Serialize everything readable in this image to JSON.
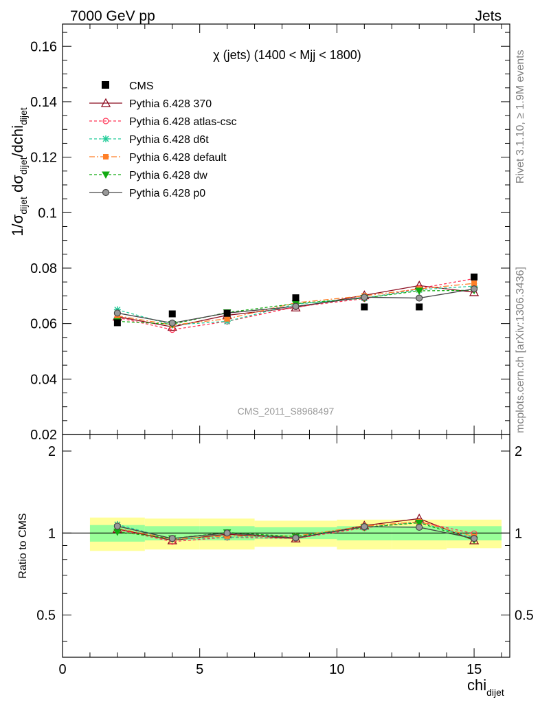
{
  "header": {
    "left": "7000 GeV pp",
    "right": "Jets"
  },
  "side_labels": {
    "rivet": "Rivet 3.1.10, ≥ 1.9M events",
    "mcplots": "mcplots.cern.ch [arXiv:1306.3436]"
  },
  "chart_data": [
    {
      "type": "line",
      "title": "χ (jets) (1400 < Mjj < 1800)",
      "ylabel_main": "1/σ",
      "ylabel_sub1": "dijet",
      "ylabel_mid": " dσ",
      "ylabel_sub2": "dijet",
      "ylabel_end": "/dchi",
      "ylabel_sub3": "dijet",
      "analysis_label": "CMS_2011_S8968497",
      "xlim": [
        0,
        16.3
      ],
      "ylim": [
        0.02,
        0.168
      ],
      "y_ticks": [
        "0.02",
        "0.04",
        "0.06",
        "0.08",
        "0.1",
        "0.12",
        "0.14",
        "0.16"
      ],
      "y_tick_values": [
        0.02,
        0.04,
        0.06,
        0.08,
        0.1,
        0.12,
        0.14,
        0.16
      ],
      "grid": false,
      "legend_position": "top-left",
      "data": {
        "name": "CMS",
        "x": [
          2,
          4,
          6,
          8.5,
          11,
          13,
          15
        ],
        "y": [
          0.0603,
          0.0635,
          0.0637,
          0.0693,
          0.066,
          0.066,
          0.0768
        ]
      },
      "series": [
        {
          "name": "Pythia 6.428 370",
          "color": "#8b0a1e",
          "dash": "",
          "marker": "triangle",
          "x": [
            2,
            4,
            6,
            8.5,
            11,
            13,
            15
          ],
          "y": [
            0.0625,
            0.0588,
            0.063,
            0.0658,
            0.0702,
            0.0737,
            0.0713
          ]
        },
        {
          "name": "Pythia 6.428 atlas-csc",
          "color": "#ff3355",
          "dash": "4,3",
          "marker": "circle-open",
          "x": [
            2,
            4,
            6,
            8.5,
            11,
            13,
            15
          ],
          "y": [
            0.0622,
            0.0578,
            0.0608,
            0.066,
            0.069,
            0.0727,
            0.0762
          ]
        },
        {
          "name": "Pythia 6.428 d6t",
          "color": "#22cc99",
          "dash": "4,3",
          "marker": "star",
          "x": [
            2,
            4,
            6,
            8.5,
            11,
            13,
            15
          ],
          "y": [
            0.065,
            0.0595,
            0.0608,
            0.067,
            0.0692,
            0.0722,
            0.0735
          ]
        },
        {
          "name": "Pythia 6.428 default",
          "color": "#ff7f27",
          "dash": "8,3,2,3",
          "marker": "square",
          "x": [
            2,
            4,
            6,
            8.5,
            11,
            13,
            15
          ],
          "y": [
            0.0628,
            0.0595,
            0.0617,
            0.0675,
            0.07,
            0.0725,
            0.0745
          ]
        },
        {
          "name": "Pythia 6.428 dw",
          "color": "#11aa11",
          "dash": "4,3",
          "marker": "triangle-down",
          "x": [
            2,
            4,
            6,
            8.5,
            11,
            13,
            15
          ],
          "y": [
            0.0608,
            0.0598,
            0.064,
            0.0672,
            0.0692,
            0.0718,
            0.072
          ]
        },
        {
          "name": "Pythia 6.428 p0",
          "color": "#444444",
          "dash": "",
          "marker": "circle",
          "x": [
            2,
            4,
            6,
            8.5,
            11,
            13,
            15
          ],
          "y": [
            0.0638,
            0.0602,
            0.0638,
            0.0662,
            0.0695,
            0.0692,
            0.0725
          ]
        }
      ]
    },
    {
      "type": "line",
      "ylabel": "Ratio to CMS",
      "xlabel": "chi",
      "xlabel_sub": "dijet",
      "xlim": [
        0,
        16.3
      ],
      "ylim": [
        0.35,
        2.3
      ],
      "x_ticks": [
        "0",
        "5",
        "10",
        "15"
      ],
      "x_tick_values": [
        0,
        5,
        10,
        15
      ],
      "y_ticks": [
        "0.5",
        "1",
        "2"
      ],
      "y_tick_values": [
        0.5,
        1,
        2
      ],
      "reference_line": 1,
      "uncertainty_bands": [
        {
          "x0": 1,
          "x1": 3,
          "inner": [
            0.93,
            1.07
          ],
          "outer": [
            0.86,
            1.14
          ]
        },
        {
          "x0": 3,
          "x1": 5,
          "inner": [
            0.94,
            1.06
          ],
          "outer": [
            0.87,
            1.13
          ]
        },
        {
          "x0": 5,
          "x1": 7,
          "inner": [
            0.94,
            1.06
          ],
          "outer": [
            0.87,
            1.13
          ]
        },
        {
          "x0": 7,
          "x1": 10,
          "inner": [
            0.95,
            1.05
          ],
          "outer": [
            0.89,
            1.11
          ]
        },
        {
          "x0": 10,
          "x1": 12,
          "inner": [
            0.94,
            1.06
          ],
          "outer": [
            0.87,
            1.12
          ]
        },
        {
          "x0": 12,
          "x1": 14,
          "inner": [
            0.94,
            1.06
          ],
          "outer": [
            0.87,
            1.12
          ]
        },
        {
          "x0": 14,
          "x1": 16,
          "inner": [
            0.94,
            1.06
          ],
          "outer": [
            0.88,
            1.12
          ]
        }
      ],
      "series": [
        {
          "name": "Pythia 6.428 370",
          "color": "#8b0a1e",
          "dash": "",
          "marker": "triangle",
          "x": [
            2,
            4,
            6,
            8.5,
            11,
            13,
            15
          ],
          "y": [
            1.035,
            0.94,
            0.99,
            0.955,
            1.065,
            1.13,
            0.94
          ]
        },
        {
          "name": "Pythia 6.428 atlas-csc",
          "color": "#ff3355",
          "dash": "4,3",
          "marker": "circle-open",
          "x": [
            2,
            4,
            6,
            8.5,
            11,
            13,
            15
          ],
          "y": [
            1.03,
            0.93,
            0.965,
            0.955,
            1.045,
            1.1,
            0.995
          ]
        },
        {
          "name": "Pythia 6.428 d6t",
          "color": "#22cc99",
          "dash": "4,3",
          "marker": "star",
          "x": [
            2,
            4,
            6,
            8.5,
            11,
            13,
            15
          ],
          "y": [
            1.075,
            0.95,
            0.965,
            0.975,
            1.05,
            1.095,
            0.96
          ]
        },
        {
          "name": "Pythia 6.428 default",
          "color": "#ff7f27",
          "dash": "8,3,2,3",
          "marker": "square",
          "x": [
            2,
            4,
            6,
            8.5,
            11,
            13,
            15
          ],
          "y": [
            1.04,
            0.95,
            0.975,
            0.975,
            1.06,
            1.1,
            0.97
          ]
        },
        {
          "name": "Pythia 6.428 dw",
          "color": "#11aa11",
          "dash": "4,3",
          "marker": "triangle-down",
          "x": [
            2,
            4,
            6,
            8.5,
            11,
            13,
            15
          ],
          "y": [
            1.01,
            0.955,
            1.005,
            0.97,
            1.05,
            1.09,
            0.945
          ]
        },
        {
          "name": "Pythia 6.428 p0",
          "color": "#444444",
          "dash": "",
          "marker": "circle",
          "x": [
            2,
            4,
            6,
            8.5,
            11,
            13,
            15
          ],
          "y": [
            1.06,
            0.955,
            1.0,
            0.96,
            1.055,
            1.05,
            0.955
          ]
        }
      ]
    }
  ]
}
